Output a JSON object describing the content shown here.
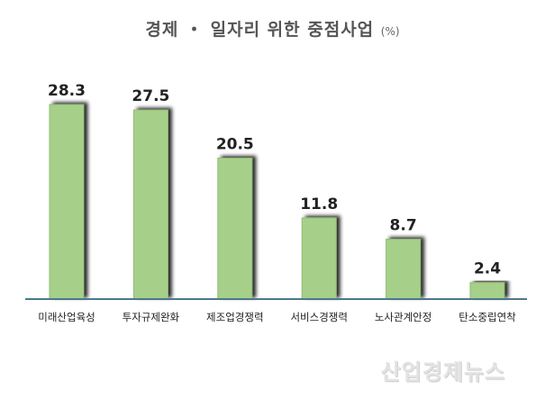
{
  "chart_data": {
    "type": "bar",
    "title": "경제 ・ 일자리 위한 중점사업",
    "unit": "(%)",
    "categories": [
      "미래산업육성",
      "투자규제완화",
      "제조업경쟁력",
      "서비스경쟁력",
      "노사관계안정",
      "탄소중립연착"
    ],
    "values": [
      28.3,
      27.5,
      20.5,
      11.8,
      8.7,
      2.4
    ],
    "value_labels": [
      "28.3",
      "27.5",
      "20.5",
      "11.8",
      "8.7",
      "2.4"
    ],
    "ylim": [
      0,
      30
    ],
    "grid": false,
    "legend": "none",
    "colors": {
      "bar": "#a6d08a",
      "bar_border": "#8fbe72",
      "shadow": "#1c1c1c",
      "axis": "#4a7a8c",
      "value_label": "#222222"
    }
  },
  "watermark": "산업경제뉴스"
}
